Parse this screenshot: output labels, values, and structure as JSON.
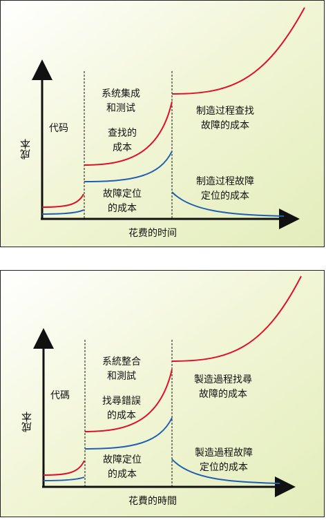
{
  "panels": [
    {
      "xlabel": "花费的时间",
      "ylabel": "成本",
      "regions": {
        "code": "代码",
        "integration": "系统集成\n和测试",
        "manufacturing_find": "制造过程查找\n故障的成本",
        "find_cost": "查找的\n成本",
        "locate_cost": "故障定位\n的成本",
        "manufacturing_locate": "制造过程故障\n定位的成本"
      },
      "colors": {
        "find": "#e0102a",
        "locate": "#1f5fb0"
      }
    },
    {
      "xlabel": "花費的時間",
      "ylabel": "成本",
      "regions": {
        "code": "代碼",
        "integration": "系統整合\n和測試",
        "manufacturing_find": "製造過程找尋\n故障的成本",
        "find_cost": "找尋錯誤\n的成本",
        "locate_cost": "故障定位\n的成本",
        "manufacturing_locate": "製造過程故障\n定位的成本"
      },
      "colors": {
        "find": "#e0102a",
        "locate": "#1f5fb0"
      }
    }
  ]
}
